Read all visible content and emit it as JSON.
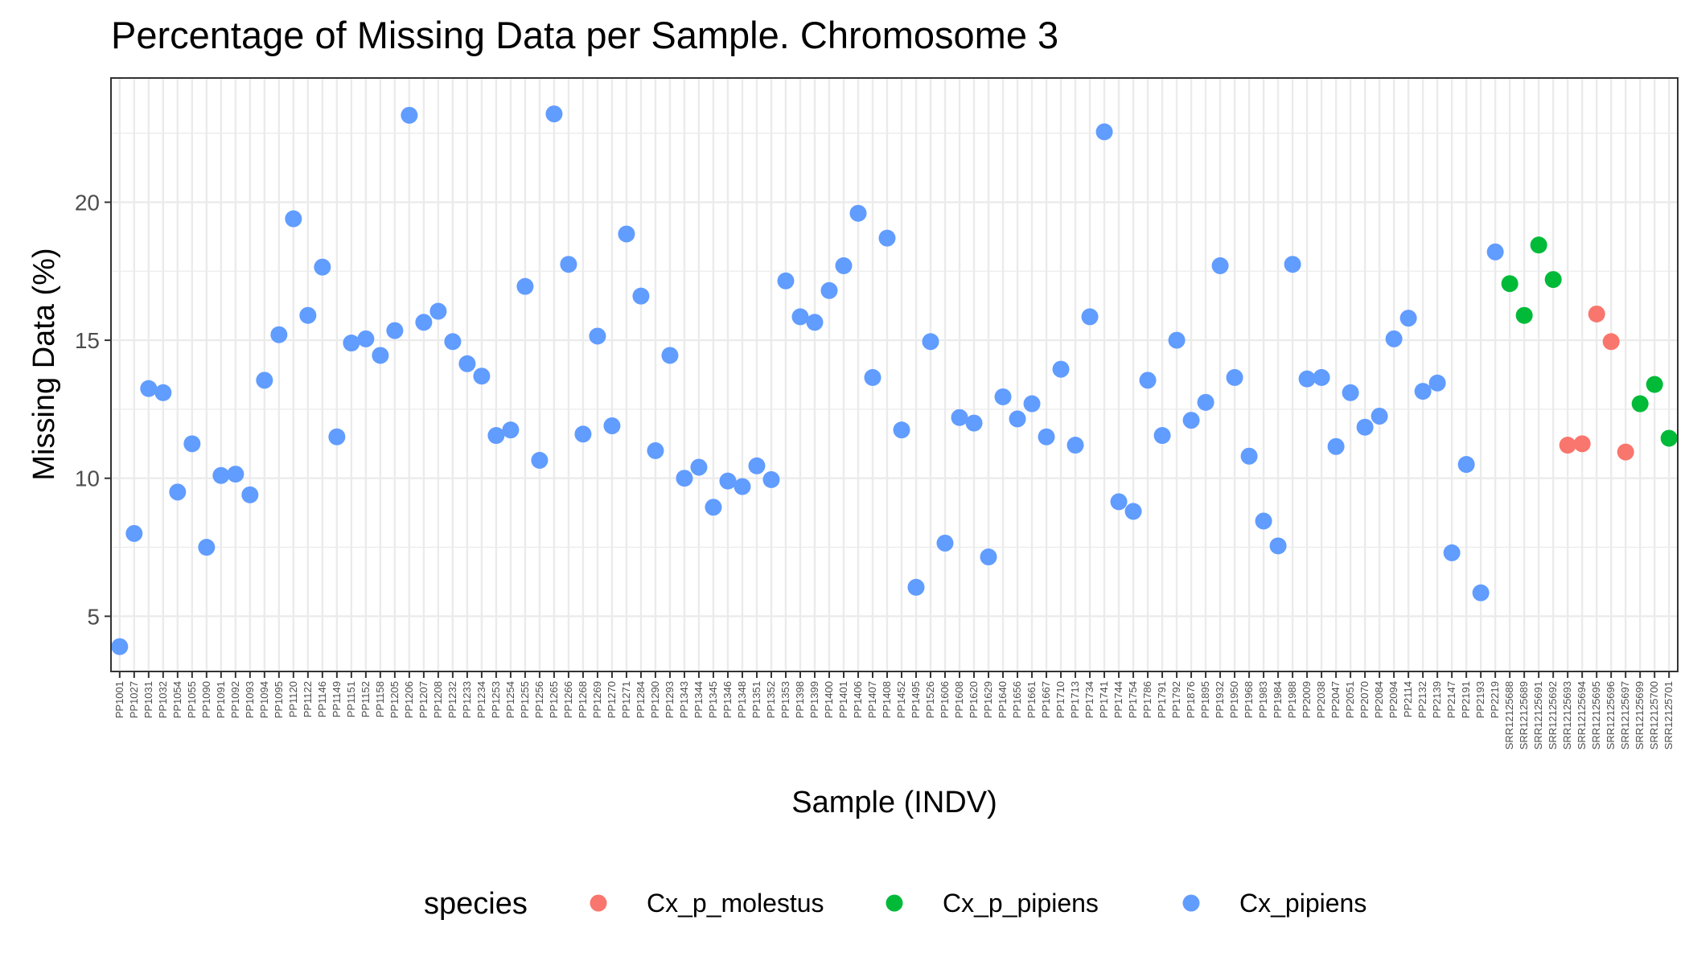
{
  "chart_data": {
    "type": "scatter",
    "title": "Percentage of Missing Data per Sample. Chromosome 3",
    "xlabel": "Sample (INDV)",
    "ylabel": "Missing Data (%)",
    "ylim": [
      3,
      24.5
    ],
    "yticks": [
      5,
      10,
      15,
      20
    ],
    "grid": true,
    "legend": {
      "title": "species",
      "position": "bottom",
      "entries": [
        {
          "name": "Cx_p_molestus",
          "color": "#F8766D"
        },
        {
          "name": "Cx_p_pipiens",
          "color": "#00BA38"
        },
        {
          "name": "Cx_pipiens",
          "color": "#619CFF"
        }
      ]
    },
    "categories": [
      "PP1001",
      "PP1027",
      "PP1031",
      "PP1032",
      "PP1054",
      "PP1055",
      "PP1090",
      "PP1091",
      "PP1092",
      "PP1093",
      "PP1094",
      "PP1095",
      "PP1120",
      "PP1122",
      "PP1146",
      "PP1149",
      "PP1151",
      "PP1152",
      "PP1158",
      "PP1205",
      "PP1206",
      "PP1207",
      "PP1208",
      "PP1232",
      "PP1233",
      "PP1234",
      "PP1253",
      "PP1254",
      "PP1255",
      "PP1256",
      "PP1265",
      "PP1266",
      "PP1268",
      "PP1269",
      "PP1270",
      "PP1271",
      "PP1284",
      "PP1290",
      "PP1293",
      "PP1343",
      "PP1344",
      "PP1345",
      "PP1346",
      "PP1348",
      "PP1351",
      "PP1352",
      "PP1353",
      "PP1398",
      "PP1399",
      "PP1400",
      "PP1401",
      "PP1406",
      "PP1407",
      "PP1408",
      "PP1452",
      "PP1495",
      "PP1526",
      "PP1606",
      "PP1608",
      "PP1620",
      "PP1629",
      "PP1640",
      "PP1656",
      "PP1661",
      "PP1667",
      "PP1710",
      "PP1713",
      "PP1734",
      "PP1741",
      "PP1744",
      "PP1754",
      "PP1786",
      "PP1791",
      "PP1792",
      "PP1876",
      "PP1895",
      "PP1932",
      "PP1950",
      "PP1968",
      "PP1983",
      "PP1984",
      "PP1988",
      "PP2009",
      "PP2038",
      "PP2047",
      "PP2051",
      "PP2070",
      "PP2084",
      "PP2094",
      "PP2114",
      "PP2132",
      "PP2139",
      "PP2147",
      "PP2191",
      "PP2193",
      "PP2219",
      "SRR12125688",
      "SRR12125689",
      "SRR12125691",
      "SRR12125692",
      "SRR12125693",
      "SRR12125694",
      "SRR12125695",
      "SRR12125696",
      "SRR12125697",
      "SRR12125699",
      "SRR12125700",
      "SRR12125701"
    ],
    "values": [
      3.9,
      8.0,
      13.25,
      13.1,
      9.5,
      11.25,
      7.5,
      10.1,
      10.15,
      9.4,
      13.55,
      15.2,
      19.4,
      15.9,
      17.65,
      11.5,
      14.9,
      15.05,
      14.45,
      15.35,
      23.15,
      15.65,
      16.05,
      14.95,
      14.15,
      13.7,
      11.55,
      11.75,
      16.95,
      10.65,
      23.2,
      17.75,
      11.6,
      15.15,
      11.9,
      18.85,
      16.6,
      11.0,
      14.45,
      10.0,
      10.4,
      8.95,
      9.9,
      9.7,
      10.45,
      9.95,
      17.15,
      15.85,
      15.65,
      16.8,
      17.7,
      19.6,
      13.65,
      18.7,
      11.75,
      6.05,
      14.95,
      7.65,
      12.2,
      12.0,
      7.15,
      12.95,
      12.15,
      12.7,
      11.5,
      13.95,
      11.2,
      15.85,
      22.55,
      9.15,
      8.8,
      13.55,
      11.55,
      15.0,
      12.1,
      12.75,
      17.7,
      13.65,
      10.8,
      8.45,
      7.55,
      17.75,
      13.6,
      13.65,
      11.15,
      13.1,
      11.85,
      12.25,
      15.05,
      15.8,
      13.15,
      13.45,
      7.3,
      10.5,
      5.85,
      18.2,
      17.05,
      15.9,
      18.45,
      17.2,
      11.2,
      11.25,
      15.95,
      14.95,
      10.95,
      12.7,
      13.4,
      11.45
    ],
    "series_membership": [
      "Cx_pipiens",
      "Cx_pipiens",
      "Cx_pipiens",
      "Cx_pipiens",
      "Cx_pipiens",
      "Cx_pipiens",
      "Cx_pipiens",
      "Cx_pipiens",
      "Cx_pipiens",
      "Cx_pipiens",
      "Cx_pipiens",
      "Cx_pipiens",
      "Cx_pipiens",
      "Cx_pipiens",
      "Cx_pipiens",
      "Cx_pipiens",
      "Cx_pipiens",
      "Cx_pipiens",
      "Cx_pipiens",
      "Cx_pipiens",
      "Cx_pipiens",
      "Cx_pipiens",
      "Cx_pipiens",
      "Cx_pipiens",
      "Cx_pipiens",
      "Cx_pipiens",
      "Cx_pipiens",
      "Cx_pipiens",
      "Cx_pipiens",
      "Cx_pipiens",
      "Cx_pipiens",
      "Cx_pipiens",
      "Cx_pipiens",
      "Cx_pipiens",
      "Cx_pipiens",
      "Cx_pipiens",
      "Cx_pipiens",
      "Cx_pipiens",
      "Cx_pipiens",
      "Cx_pipiens",
      "Cx_pipiens",
      "Cx_pipiens",
      "Cx_pipiens",
      "Cx_pipiens",
      "Cx_pipiens",
      "Cx_pipiens",
      "Cx_pipiens",
      "Cx_pipiens",
      "Cx_pipiens",
      "Cx_pipiens",
      "Cx_pipiens",
      "Cx_pipiens",
      "Cx_pipiens",
      "Cx_pipiens",
      "Cx_pipiens",
      "Cx_pipiens",
      "Cx_pipiens",
      "Cx_pipiens",
      "Cx_pipiens",
      "Cx_pipiens",
      "Cx_pipiens",
      "Cx_pipiens",
      "Cx_pipiens",
      "Cx_pipiens",
      "Cx_pipiens",
      "Cx_pipiens",
      "Cx_pipiens",
      "Cx_pipiens",
      "Cx_pipiens",
      "Cx_pipiens",
      "Cx_pipiens",
      "Cx_pipiens",
      "Cx_pipiens",
      "Cx_pipiens",
      "Cx_pipiens",
      "Cx_pipiens",
      "Cx_pipiens",
      "Cx_pipiens",
      "Cx_pipiens",
      "Cx_pipiens",
      "Cx_pipiens",
      "Cx_pipiens",
      "Cx_pipiens",
      "Cx_pipiens",
      "Cx_pipiens",
      "Cx_pipiens",
      "Cx_pipiens",
      "Cx_pipiens",
      "Cx_pipiens",
      "Cx_pipiens",
      "Cx_pipiens",
      "Cx_pipiens",
      "Cx_pipiens",
      "Cx_pipiens",
      "Cx_pipiens",
      "Cx_pipiens",
      "Cx_p_pipiens",
      "Cx_p_pipiens",
      "Cx_p_pipiens",
      "Cx_p_pipiens",
      "Cx_p_molestus",
      "Cx_p_molestus",
      "Cx_p_molestus",
      "Cx_p_molestus",
      "Cx_p_molestus",
      "Cx_p_pipiens",
      "Cx_p_pipiens",
      "Cx_p_pipiens"
    ]
  }
}
